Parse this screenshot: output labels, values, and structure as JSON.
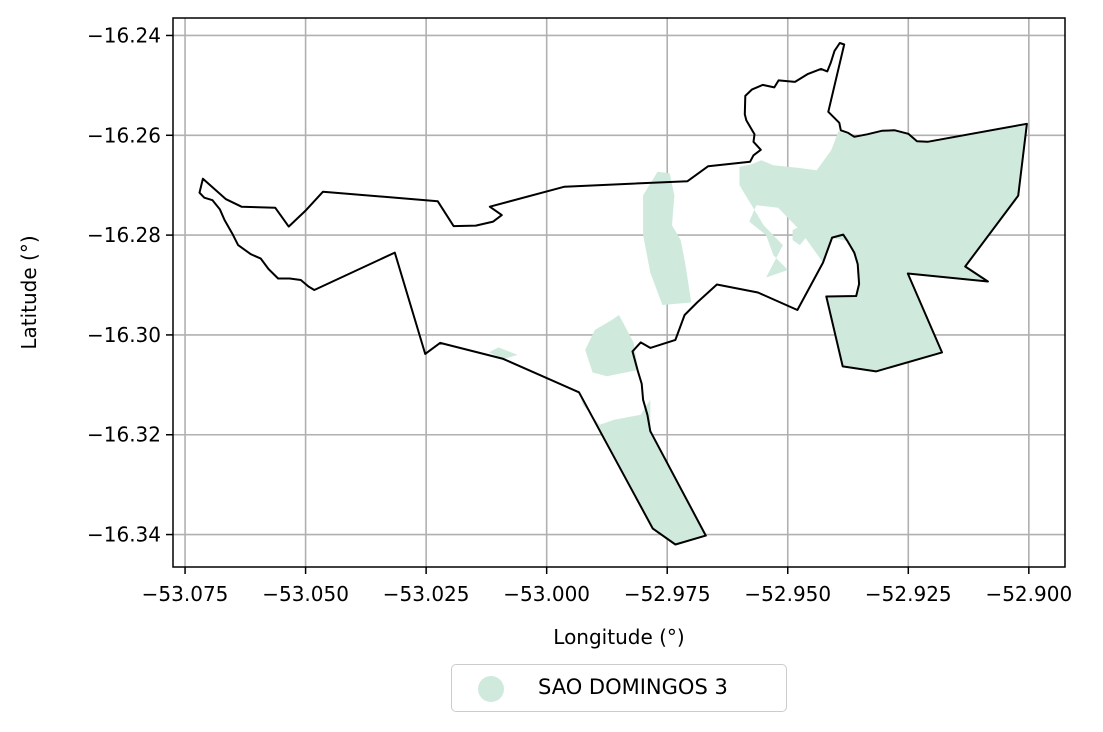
{
  "chart_data": {
    "type": "map",
    "xlabel": "Longitude (°)",
    "ylabel": "Latitude (°)",
    "xlim": [
      -53.0775,
      -52.8925
    ],
    "ylim": [
      -16.3465,
      -16.2365
    ],
    "x_ticks": [
      -53.075,
      -53.05,
      -53.025,
      -53.0,
      -52.975,
      -52.95,
      -52.925,
      -52.9
    ],
    "x_tick_labels": [
      "−53.075",
      "−53.050",
      "−53.025",
      "−53.000",
      "−52.975",
      "−52.950",
      "−52.925",
      "−52.900"
    ],
    "y_ticks": [
      -16.24,
      -16.26,
      -16.28,
      -16.3,
      -16.32,
      -16.34
    ],
    "y_tick_labels": [
      "−16.24",
      "−16.26",
      "−16.28",
      "−16.30",
      "−16.32",
      "−16.34"
    ],
    "grid": true,
    "legend_position": "bottom-center",
    "legend": [
      {
        "name": "SAO DOMINGOS 3",
        "color": "#cfeadd"
      }
    ],
    "boundary_outline": [
      [
        -53.072,
        -16.2715
      ],
      [
        -53.0713,
        -16.2687
      ],
      [
        -53.0665,
        -16.2728
      ],
      [
        -53.0633,
        -16.2743
      ],
      [
        -53.0563,
        -16.2745
      ],
      [
        -53.0535,
        -16.2783
      ],
      [
        -53.0499,
        -16.275
      ],
      [
        -53.0464,
        -16.2713
      ],
      [
        -53.0226,
        -16.2732
      ],
      [
        -53.0193,
        -16.2782
      ],
      [
        -53.0147,
        -16.2781
      ],
      [
        -53.0111,
        -16.2773
      ],
      [
        -53.0093,
        -16.276
      ],
      [
        -53.0118,
        -16.2743
      ],
      [
        -52.9963,
        -16.2703
      ],
      [
        -52.9708,
        -16.2692
      ],
      [
        -52.9665,
        -16.2662
      ],
      [
        -52.9578,
        -16.2653
      ],
      [
        -52.9571,
        -16.264
      ],
      [
        -52.9556,
        -16.2629
      ],
      [
        -52.9571,
        -16.2613
      ],
      [
        -52.9569,
        -16.2598
      ],
      [
        -52.9586,
        -16.257
      ],
      [
        -52.9589,
        -16.2558
      ],
      [
        -52.9588,
        -16.2521
      ],
      [
        -52.9574,
        -16.2508
      ],
      [
        -52.9552,
        -16.2499
      ],
      [
        -52.9528,
        -16.2504
      ],
      [
        -52.9519,
        -16.249
      ],
      [
        -52.9485,
        -16.2493
      ],
      [
        -52.9458,
        -16.2477
      ],
      [
        -52.9431,
        -16.2467
      ],
      [
        -52.9418,
        -16.2472
      ],
      [
        -52.9411,
        -16.2455
      ],
      [
        -52.9403,
        -16.2431
      ],
      [
        -52.9392,
        -16.2415
      ],
      [
        -52.9383,
        -16.2418
      ],
      [
        -52.9416,
        -16.2553
      ],
      [
        -52.9393,
        -16.2575
      ],
      [
        -52.939,
        -16.259
      ],
      [
        -52.9375,
        -16.2595
      ],
      [
        -52.9362,
        -16.2603
      ],
      [
        -52.9335,
        -16.2598
      ],
      [
        -52.9305,
        -16.2591
      ],
      [
        -52.9278,
        -16.259
      ],
      [
        -52.925,
        -16.2597
      ],
      [
        -52.9232,
        -16.2612
      ],
      [
        -52.921,
        -16.2613
      ],
      [
        -52.9004,
        -16.2577
      ],
      [
        -52.9022,
        -16.2721
      ],
      [
        -52.9132,
        -16.2863
      ],
      [
        -52.9085,
        -16.2893
      ],
      [
        -52.9251,
        -16.2877
      ],
      [
        -52.918,
        -16.3035
      ],
      [
        -52.9317,
        -16.3073
      ],
      [
        -52.9386,
        -16.3063
      ],
      [
        -52.942,
        -16.2923
      ],
      [
        -52.9358,
        -16.2922
      ],
      [
        -52.9352,
        -16.2898
      ],
      [
        -52.9355,
        -16.2858
      ],
      [
        -52.9362,
        -16.2835
      ],
      [
        -52.9376,
        -16.2812
      ],
      [
        -52.9385,
        -16.2799
      ],
      [
        -52.9408,
        -16.2805
      ],
      [
        -52.9427,
        -16.2855
      ],
      [
        -52.948,
        -16.295
      ],
      [
        -52.9562,
        -16.2915
      ],
      [
        -52.9647,
        -16.2899
      ],
      [
        -52.9688,
        -16.2935
      ],
      [
        -52.9714,
        -16.296
      ],
      [
        -52.9733,
        -16.301
      ],
      [
        -52.9785,
        -16.3026
      ],
      [
        -52.9805,
        -16.3015
      ],
      [
        -52.9822,
        -16.3033
      ],
      [
        -52.9811,
        -16.3072
      ],
      [
        -52.9803,
        -16.3098
      ],
      [
        -52.98,
        -16.313
      ],
      [
        -52.9791,
        -16.316
      ],
      [
        -52.9785,
        -16.3193
      ],
      [
        -52.967,
        -16.3402
      ],
      [
        -52.9733,
        -16.342
      ],
      [
        -52.978,
        -16.3388
      ],
      [
        -52.9933,
        -16.3115
      ],
      [
        -53.009,
        -16.3048
      ],
      [
        -53.0221,
        -16.3016
      ],
      [
        -53.0252,
        -16.3038
      ],
      [
        -53.0315,
        -16.2835
      ],
      [
        -53.0482,
        -16.291
      ],
      [
        -53.0494,
        -16.2903
      ],
      [
        -53.051,
        -16.289
      ],
      [
        -53.0533,
        -16.2887
      ],
      [
        -53.0557,
        -16.2887
      ],
      [
        -53.0577,
        -16.2868
      ],
      [
        -53.0593,
        -16.2847
      ],
      [
        -53.0614,
        -16.2838
      ],
      [
        -53.064,
        -16.282
      ],
      [
        -53.0652,
        -16.2797
      ],
      [
        -53.0668,
        -16.277
      ],
      [
        -53.0678,
        -16.2748
      ],
      [
        -53.0693,
        -16.273
      ],
      [
        -53.071,
        -16.2725
      ],
      [
        -53.072,
        -16.2715
      ]
    ],
    "fill_regions": [
      [
        [
          -52.96,
          -16.2663
        ],
        [
          -52.9575,
          -16.2658
        ],
        [
          -52.9555,
          -16.265
        ],
        [
          -52.953,
          -16.266
        ],
        [
          -52.948,
          -16.2665
        ],
        [
          -52.944,
          -16.267
        ],
        [
          -52.941,
          -16.263
        ],
        [
          -52.9395,
          -16.2592
        ],
        [
          -52.936,
          -16.2603
        ],
        [
          -52.933,
          -16.2597
        ],
        [
          -52.93,
          -16.2592
        ],
        [
          -52.926,
          -16.2593
        ],
        [
          -52.9232,
          -16.2612
        ],
        [
          -52.921,
          -16.2613
        ],
        [
          -52.9004,
          -16.2577
        ],
        [
          -52.9022,
          -16.2721
        ],
        [
          -52.9132,
          -16.2863
        ],
        [
          -52.9085,
          -16.2893
        ],
        [
          -52.9251,
          -16.2877
        ],
        [
          -52.918,
          -16.3035
        ],
        [
          -52.9317,
          -16.3073
        ],
        [
          -52.9386,
          -16.3063
        ],
        [
          -52.942,
          -16.2923
        ],
        [
          -52.9358,
          -16.2922
        ],
        [
          -52.9352,
          -16.2898
        ],
        [
          -52.9355,
          -16.2858
        ],
        [
          -52.9376,
          -16.2812
        ],
        [
          -52.9408,
          -16.2805
        ],
        [
          -52.9427,
          -16.2855
        ],
        [
          -52.9475,
          -16.279
        ],
        [
          -52.952,
          -16.2745
        ],
        [
          -52.9565,
          -16.274
        ],
        [
          -52.958,
          -16.2773
        ],
        [
          -52.9545,
          -16.28
        ],
        [
          -52.953,
          -16.284
        ],
        [
          -52.95,
          -16.287
        ],
        [
          -52.9545,
          -16.2885
        ],
        [
          -52.951,
          -16.282
        ],
        [
          -52.955,
          -16.278
        ],
        [
          -52.96,
          -16.27
        ]
      ],
      [
        [
          -52.949,
          -16.279
        ],
        [
          -52.947,
          -16.278
        ],
        [
          -52.9458,
          -16.28
        ],
        [
          -52.9475,
          -16.282
        ],
        [
          -52.949,
          -16.281
        ]
      ],
      [
        [
          -52.977,
          -16.2673
        ],
        [
          -52.9745,
          -16.2676
        ],
        [
          -52.9735,
          -16.272
        ],
        [
          -52.974,
          -16.278
        ],
        [
          -52.9722,
          -16.281
        ],
        [
          -52.9713,
          -16.2855
        ],
        [
          -52.97,
          -16.2935
        ],
        [
          -52.976,
          -16.294
        ],
        [
          -52.9785,
          -16.2875
        ],
        [
          -52.98,
          -16.28
        ],
        [
          -52.98,
          -16.272
        ]
      ],
      [
        [
          -52.985,
          -16.296
        ],
        [
          -52.982,
          -16.3015
        ],
        [
          -52.981,
          -16.307
        ],
        [
          -52.9875,
          -16.3083
        ],
        [
          -52.9905,
          -16.3075
        ],
        [
          -52.992,
          -16.303
        ],
        [
          -52.99,
          -16.299
        ],
        [
          -52.9865,
          -16.297
        ]
      ],
      [
        [
          -52.9785,
          -16.313
        ],
        [
          -52.9805,
          -16.316
        ],
        [
          -52.986,
          -16.317
        ],
        [
          -52.989,
          -16.318
        ],
        [
          -52.9925,
          -16.314
        ],
        [
          -52.9933,
          -16.3115
        ],
        [
          -52.978,
          -16.3388
        ],
        [
          -52.9733,
          -16.342
        ],
        [
          -52.967,
          -16.3402
        ],
        [
          -52.9785,
          -16.3193
        ]
      ],
      [
        [
          -53.012,
          -16.3035
        ],
        [
          -53.009,
          -16.3048
        ],
        [
          -53.006,
          -16.304
        ],
        [
          -53.01,
          -16.3025
        ]
      ]
    ]
  }
}
